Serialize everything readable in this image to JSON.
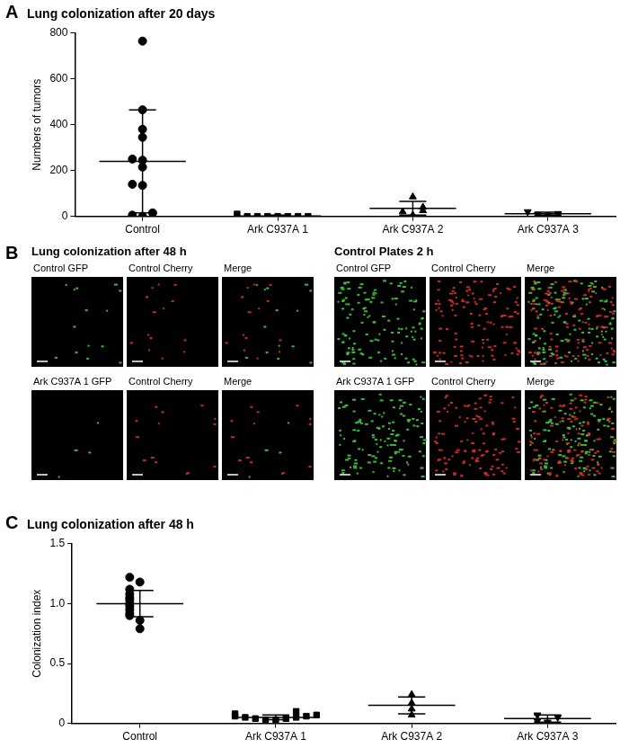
{
  "chart_data": [
    {
      "type": "scatter",
      "annotations": [
        "A"
      ],
      "title": "Lung colonization after 20 days",
      "ylabel": "Numbers of tumors",
      "ylim": [
        0,
        800
      ],
      "yticks": [
        0,
        200,
        400,
        600,
        800
      ],
      "grid": false,
      "color": "#000000",
      "series": [
        {
          "name": "Control",
          "marker": "circle",
          "values": [
            765,
            465,
            380,
            345,
            250,
            245,
            215,
            140,
            135,
            15,
            5,
            0
          ],
          "mean": 240,
          "error": 225
        },
        {
          "name": "Ark C937A 1",
          "marker": "square",
          "values": [
            0,
            0,
            0,
            0,
            0,
            0,
            0,
            10
          ],
          "mean": 1,
          "error": 4
        },
        {
          "name": "Ark C937A 2",
          "marker": "triangle",
          "values": [
            85,
            40,
            25,
            20,
            5
          ],
          "mean": 35,
          "error": 30
        },
        {
          "name": "Ark C937A 3",
          "marker": "triangle-down",
          "values": [
            5,
            8,
            12,
            20
          ],
          "mean": 11,
          "error": 7
        }
      ]
    },
    {
      "type": "scatter",
      "annotations": [
        "C"
      ],
      "title": "Lung colonization after 48 h",
      "ylabel": "Colonization index",
      "ylim": [
        0,
        1.5
      ],
      "yticks": [
        0,
        0.5,
        {
          "value": 1,
          "label": "1.0"
        },
        1.5
      ],
      "grid": false,
      "color": "#000000",
      "series": [
        {
          "name": "Control",
          "marker": "circle",
          "values": [
            1.22,
            1.18,
            1.12,
            1.08,
            1.05,
            1.03,
            1.0,
            0.98,
            0.95,
            0.92,
            0.9,
            0.86,
            0.79
          ],
          "mean": 1.0,
          "error": 0.11
        },
        {
          "name": "Ark C937A 1",
          "marker": "square",
          "values": [
            0.1,
            0.08,
            0.07,
            0.06,
            0.06,
            0.05,
            0.05,
            0.04,
            0.04,
            0.03,
            0.03
          ],
          "mean": 0.05,
          "error": 0.02
        },
        {
          "name": "Ark C937A 2",
          "marker": "triangle",
          "values": [
            0.24,
            0.17,
            0.12,
            0.07
          ],
          "mean": 0.15,
          "error": 0.07
        },
        {
          "name": "Ark C937A 3",
          "marker": "triangle-down",
          "values": [
            0.07,
            0.05,
            0.02,
            0.01
          ],
          "mean": 0.04,
          "error": 0.03
        }
      ]
    }
  ],
  "panel_b": {
    "label": "B",
    "groups": [
      {
        "title": "Lung colonization after 48 h",
        "rows": [
          [
            "Control GFP",
            "Control Cherry",
            "Merge"
          ],
          [
            "Ark C937A 1 GFP",
            "Control Cherry",
            "Merge"
          ]
        ]
      },
      {
        "title": "Control Plates 2 h",
        "rows": [
          [
            "Control GFP",
            "Control Cherry",
            "Merge"
          ],
          [
            "Ark C937A 1 GFP",
            "Control Cherry",
            "Merge"
          ]
        ]
      }
    ]
  }
}
